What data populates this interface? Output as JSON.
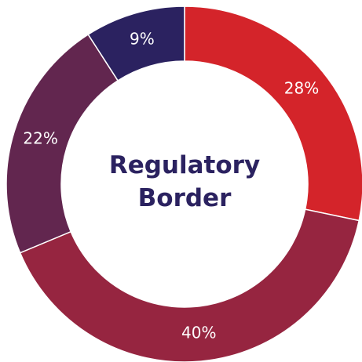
{
  "chart_data": {
    "type": "donut",
    "title": "Regulatory Border",
    "values": [
      28,
      40,
      22,
      9
    ],
    "value_labels": [
      "28%",
      "40%",
      "22%",
      "9%"
    ],
    "colors": [
      "#d4242a",
      "#962540",
      "#62264f",
      "#2b2260"
    ]
  }
}
